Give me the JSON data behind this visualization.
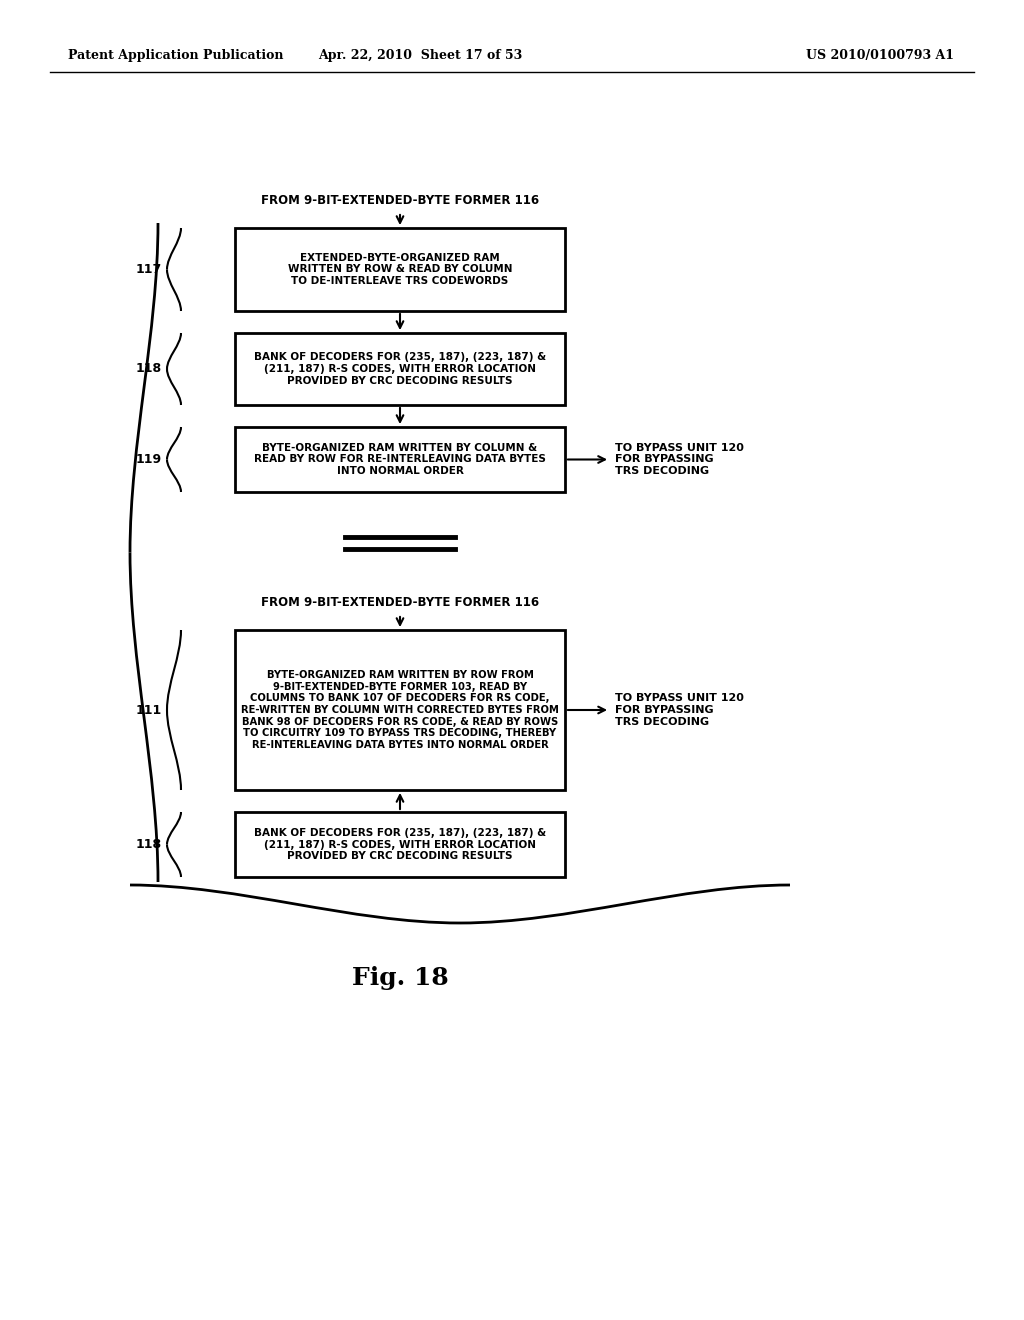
{
  "header_left": "Patent Application Publication",
  "header_mid": "Apr. 22, 2010  Sheet 17 of 53",
  "header_right": "US 2010/0100793 A1",
  "fig_label": "Fig. 18",
  "bg_color": "#ffffff",
  "top_section": {
    "from_label": "FROM 9-BIT-EXTENDED-BYTE FORMER 116",
    "box1_label": "117",
    "box1_text": "EXTENDED-BYTE-ORGANIZED RAM\nWRITTEN BY ROW & READ BY COLUMN\nTO DE-INTERLEAVE TRS CODEWORDS",
    "box2_label": "118",
    "box2_text": "BANK OF DECODERS FOR (235, 187), (223, 187) &\n(211, 187) R-S CODES, WITH ERROR LOCATION\nPROVIDED BY CRC DECODING RESULTS",
    "box3_label": "119",
    "box3_text": "BYTE-ORGANIZED RAM WRITTEN BY COLUMN &\nREAD BY ROW FOR RE-INTERLEAVING DATA BYTES\nINTO NORMAL ORDER",
    "bypass_text": "TO BYPASS UNIT 120\nFOR BYPASSING\nTRS DECODING"
  },
  "bottom_section": {
    "from_label": "FROM 9-BIT-EXTENDED-BYTE FORMER 116",
    "box1_label": "111",
    "box1_text": "BYTE-ORGANIZED RAM WRITTEN BY ROW FROM\n9-BIT-EXTENDED-BYTE FORMER 103, READ BY\nCOLUMNS TO BANK 107 OF DECODERS FOR RS CODE,\nRE-WRITTEN BY COLUMN WITH CORRECTED BYTES FROM\nBANK 98 OF DECODERS FOR RS CODE, & READ BY ROWS\nTO CIRCUITRY 109 TO BYPASS TRS DECODING, THEREBY\nRE-INTERLEAVING DATA BYTES INTO NORMAL ORDER",
    "box2_label": "118",
    "box2_text": "BANK OF DECODERS FOR (235, 187), (223, 187) &\n(211, 187) R-S CODES, WITH ERROR LOCATION\nPROVIDED BY CRC DECODING RESULTS",
    "bypass_text": "TO BYPASS UNIT 120\nFOR BYPASSING\nTRS DECODING"
  }
}
